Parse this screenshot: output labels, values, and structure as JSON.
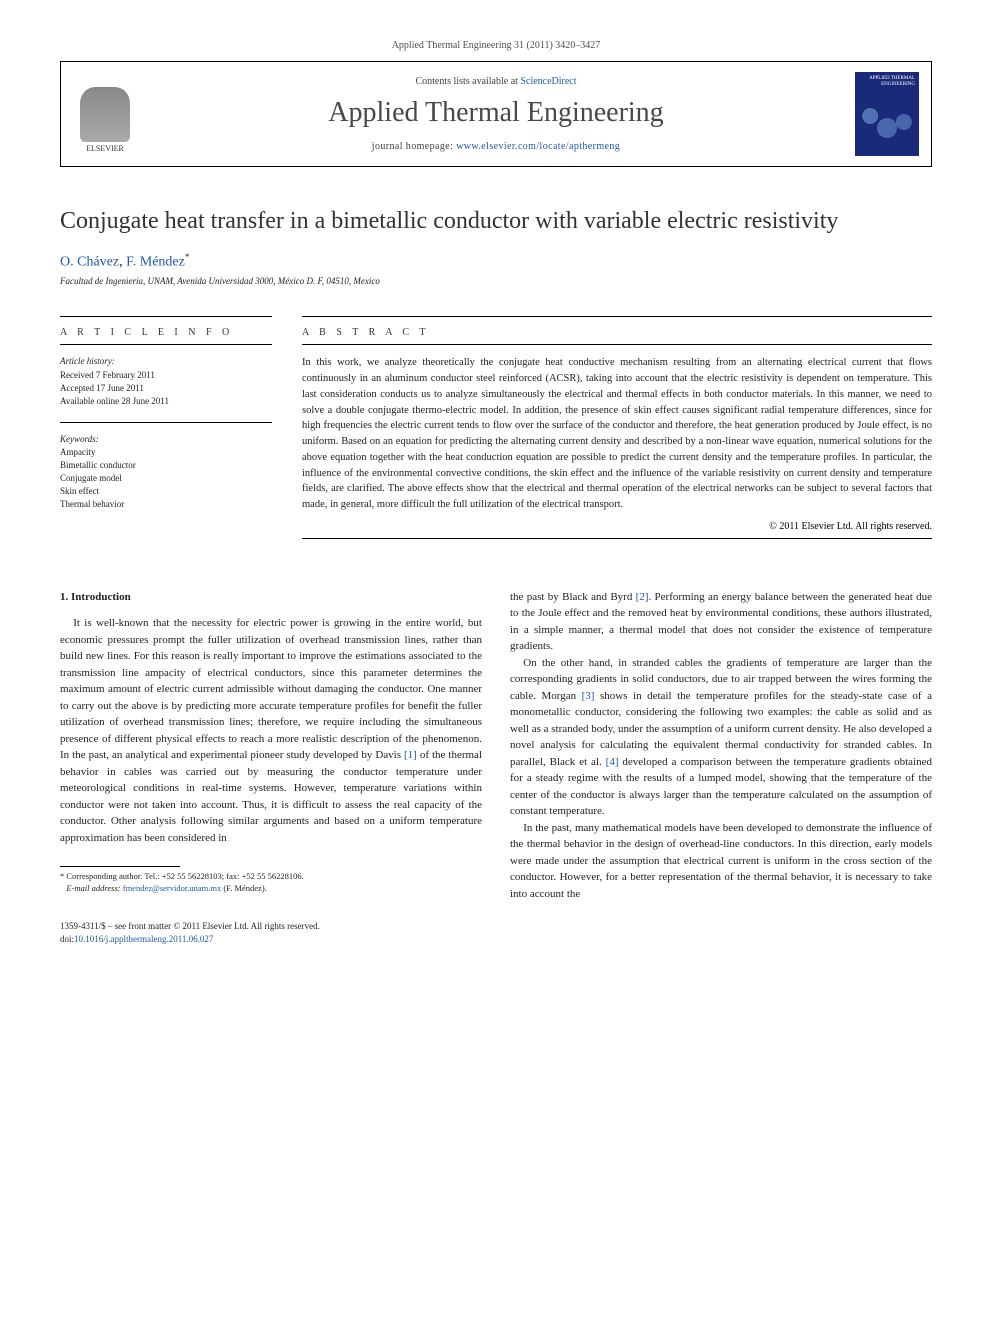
{
  "journal_ref": "Applied Thermal Engineering 31 (2011) 3420–3427",
  "header": {
    "publisher_name": "ELSEVIER",
    "contents_prefix": "Contents lists available at ",
    "contents_link": "ScienceDirect",
    "journal_title": "Applied Thermal Engineering",
    "homepage_prefix": "journal homepage: ",
    "homepage_url": "www.elsevier.com/locate/apthermeng",
    "cover_title": "APPLIED THERMAL ENGINEERING"
  },
  "article": {
    "title": "Conjugate heat transfer in a bimetallic conductor with variable electric resistivity",
    "authors_plain": "O. Chávez, F. Méndez",
    "author1": "O. Chávez",
    "author2": "F. Méndez",
    "corr_mark": "*",
    "affiliation": "Facultad de Ingeniería, UNAM, Avenida Universidad 3000, México D. F, 04510, Mexico"
  },
  "info": {
    "heading": "A R T I C L E   I N F O",
    "history_label": "Article history:",
    "received": "Received 7 February 2011",
    "accepted": "Accepted 17 June 2011",
    "online": "Available online 28 June 2011",
    "keywords_label": "Keywords:",
    "kw1": "Ampacity",
    "kw2": "Bimetallic conductor",
    "kw3": "Conjugate model",
    "kw4": "Skin effect",
    "kw5": "Thermal behavior"
  },
  "abstract": {
    "heading": "A B S T R A C T",
    "text": "In this work, we analyze theoretically the conjugate heat conductive mechanism resulting from an alternating electrical current that flows continuously in an aluminum conductor steel reinforced (ACSR), taking into account that the electric resistivity is dependent on temperature. This last consideration conducts us to analyze simultaneously the electrical and thermal effects in both conductor materials. In this manner, we need to solve a double conjugate thermo-electric model. In addition, the presence of skin effect causes significant radial temperature differences, since for high frequencies the electric current tends to flow over the surface of the conductor and therefore, the heat generation produced by Joule effect, is no uniform. Based on an equation for predicting the alternating current density and described by a non-linear wave equation, numerical solutions for the above equation together with the heat conduction equation are possible to predict the current density and the temperature profiles. In particular, the influence of the environmental convective conditions, the skin effect and the influence of the variable resistivity on current density and temperature fields, are clarified. The above effects show that the electrical and thermal operation of the electrical networks can be subject to several factors that made, in general, more difficult the full utilization of the electrical transport.",
    "copyright": "© 2011 Elsevier Ltd. All rights reserved."
  },
  "body": {
    "intro_heading": "1.  Introduction",
    "p1": "It is well-known that the necessity for electric power is growing in the entire world, but economic pressures prompt the fuller utilization of overhead transmission lines, rather than build new lines. For this reason is really important to improve the estimations associated to the transmission line ampacity of electrical conductors, since this parameter determines the maximum amount of electric current admissible without damaging the conductor. One manner to carry out the above is by predicting more accurate temperature profiles for benefit the fuller utilization of overhead transmission lines; therefore, we require including the simultaneous presence of different physical effects to reach a more realistic description of the phenomenon. In the past, an analytical and experimental pioneer study developed by Davis [1] of the thermal behavior in cables was carried out by measuring the conductor temperature under meteorological conditions in real-time systems. However, temperature variations within conductor were not taken into account. Thus, it is difficult to assess the real capacity of the conductor. Other analysis following similar arguments and based on a uniform temperature approximation has been considered in",
    "p2": "the past by Black and Byrd [2]. Performing an energy balance between the generated heat due to the Joule effect and the removed heat by environmental conditions, these authors illustrated, in a simple manner, a thermal model that does not consider the existence of temperature gradients.",
    "p3": "On the other hand, in stranded cables the gradients of temperature are larger than the corresponding gradients in solid conductors, due to air trapped between the wires forming the cable. Morgan [3] shows in detail the temperature profiles for the steady-state case of a monometallic conductor, considering the following two examples: the cable as solid and as well as a stranded body, under the assumption of a uniform current density. He also developed a novel analysis for calculating the equivalent thermal conductivity for stranded cables. In parallel, Black et al. [4] developed a comparison between the temperature gradients obtained for a steady regime with the results of a lumped model, showing that the temperature of the center of the conductor is always larger than the temperature calculated on the assumption of constant temperature.",
    "p4": "In the past, many mathematical models have been developed to demonstrate the influence of the thermal behavior in the design of overhead-line conductors. In this direction, early models were made under the assumption that electrical current is uniform in the cross section of the conductor. However, for a better representation of the thermal behavior, it is necessary to take into account the",
    "ref1": "[1]",
    "ref2": "[2]",
    "ref3": "[3]",
    "ref4": "[4]"
  },
  "footnote": {
    "corr_label": "* Corresponding author. Tel.: +52 55 56228103; fax: +52 55 56228106.",
    "email_label": "E-mail address:",
    "email": "fmendez@servidor.unam.mx",
    "email_suffix": "(F. Méndez)."
  },
  "footer": {
    "copyright": "1359-4311/$ – see front matter © 2011 Elsevier Ltd. All rights reserved.",
    "doi_prefix": "doi:",
    "doi": "10.1016/j.applthermaleng.2011.06.027"
  },
  "colors": {
    "link": "#1e5aa8",
    "cover_bg": "#1a2a7a"
  }
}
